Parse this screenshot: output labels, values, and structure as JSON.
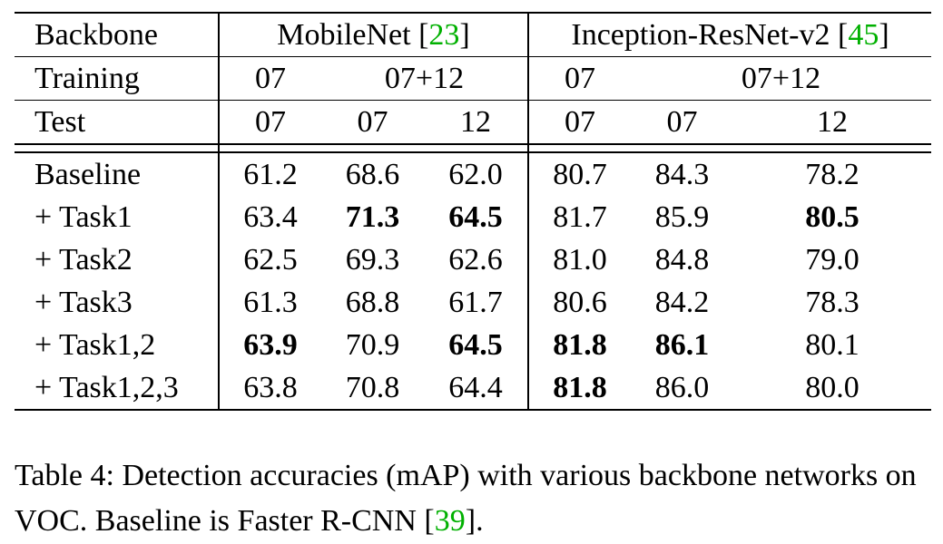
{
  "header": {
    "backbone_label": "Backbone",
    "training_label": "Training",
    "test_label": "Test",
    "mobilenet_name": "MobileNet [",
    "mobilenet_ref": "23",
    "mobilenet_close": "]",
    "inception_name": "Inception-ResNet-v2 [",
    "inception_ref": "45",
    "inception_close": "]",
    "training": [
      "07",
      "07+12",
      "07",
      "07+12"
    ],
    "test": [
      "07",
      "07",
      "12",
      "07",
      "07",
      "12"
    ]
  },
  "rows": [
    {
      "label": "Baseline",
      "values": [
        "61.2",
        "68.6",
        "62.0",
        "80.7",
        "84.3",
        "78.2"
      ],
      "bold": [
        false,
        false,
        false,
        false,
        false,
        false
      ]
    },
    {
      "label": "+ Task1",
      "values": [
        "63.4",
        "71.3",
        "64.5",
        "81.7",
        "85.9",
        "80.5"
      ],
      "bold": [
        false,
        true,
        true,
        false,
        false,
        true
      ]
    },
    {
      "label": "+ Task2",
      "values": [
        "62.5",
        "69.3",
        "62.6",
        "81.0",
        "84.8",
        "79.0"
      ],
      "bold": [
        false,
        false,
        false,
        false,
        false,
        false
      ]
    },
    {
      "label": "+ Task3",
      "values": [
        "61.3",
        "68.8",
        "61.7",
        "80.6",
        "84.2",
        "78.3"
      ],
      "bold": [
        false,
        false,
        false,
        false,
        false,
        false
      ]
    },
    {
      "label": "+ Task1,2",
      "values": [
        "63.9",
        "70.9",
        "64.5",
        "81.8",
        "86.1",
        "80.1"
      ],
      "bold": [
        true,
        false,
        true,
        true,
        true,
        false
      ]
    },
    {
      "label": "+ Task1,2,3",
      "values": [
        "63.8",
        "70.8",
        "64.4",
        "81.8",
        "86.0",
        "80.0"
      ],
      "bold": [
        false,
        false,
        false,
        true,
        false,
        false
      ]
    }
  ],
  "caption": {
    "text": "Table 4: Detection accuracies (mAP) with various backbone networks on VOC. Baseline is Faster R-CNN [",
    "ref": "39",
    "end": "]."
  }
}
